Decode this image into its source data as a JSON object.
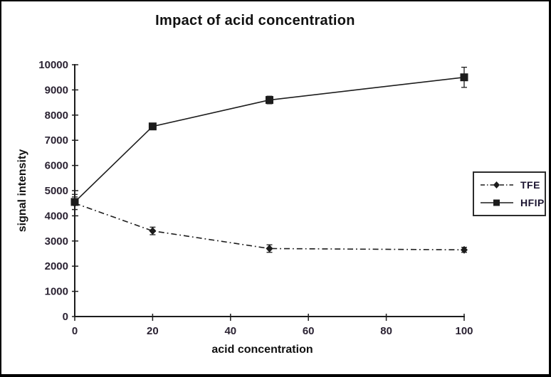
{
  "frame": {
    "background": "#ffffff",
    "border_color": "#000000"
  },
  "chart_data": {
    "type": "line",
    "title": "Impact of acid concentration",
    "xlabel": "acid concentration",
    "ylabel": "signal intensity",
    "xlim": [
      0,
      100
    ],
    "ylim": [
      0,
      10000
    ],
    "xticks": [
      0,
      20,
      40,
      60,
      80,
      100
    ],
    "yticks": [
      0,
      1000,
      2000,
      3000,
      4000,
      5000,
      6000,
      7000,
      8000,
      9000,
      10000
    ],
    "grid": false,
    "legend_position": "right-middle",
    "x": [
      0,
      20,
      50,
      100
    ],
    "series": [
      {
        "name": "TFE",
        "values": [
          4500,
          3400,
          2700,
          2650
        ],
        "errors": [
          250,
          150,
          150,
          100
        ],
        "marker": "diamond",
        "line_style": "dash-dot",
        "color": "#1c1c1c"
      },
      {
        "name": "HFIP",
        "values": [
          4550,
          7550,
          8600,
          9500
        ],
        "errors": [
          300,
          0,
          150,
          400
        ],
        "marker": "square",
        "line_style": "solid",
        "color": "#1c1c1c"
      }
    ],
    "colors": {
      "axis": "#1c1c1c",
      "tick_labels": "#2b2333",
      "legend_border": "#2b2b2b",
      "plot_background": "#ffffff"
    }
  }
}
